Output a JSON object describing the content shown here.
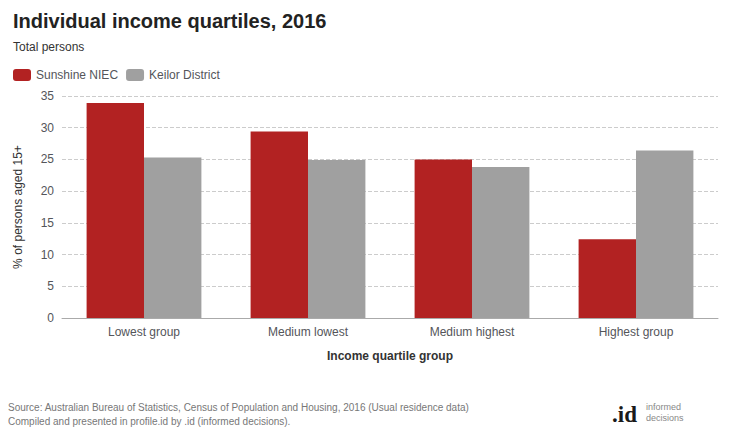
{
  "chart_data": {
    "type": "bar",
    "title": "Individual income quartiles, 2016",
    "subtitle": "Total persons",
    "categories": [
      "Lowest group",
      "Medium lowest",
      "Medium highest",
      "Highest group"
    ],
    "series": [
      {
        "name": "Sunshine NIEC",
        "color": "#b22222",
        "values": [
          33.9,
          29.4,
          25.0,
          12.4
        ]
      },
      {
        "name": "Keilor District",
        "color": "#a0a0a0",
        "values": [
          25.3,
          24.9,
          23.8,
          26.4
        ]
      }
    ],
    "xlabel": "Income quartile group",
    "ylabel": "% of persons aged 15+",
    "ylim": [
      0,
      35
    ],
    "yticks": [
      0,
      5,
      10,
      15,
      20,
      25,
      30,
      35
    ],
    "grid": true,
    "legend": "upper left",
    "annotations": [
      "Source: Australian Bureau of Statistics, Census of Population and Housing, 2016 (Usual residence data)\nCompiled and presented in profile.id by .id (informed decisions).",
      ".id",
      "informed\ndecisions"
    ]
  }
}
